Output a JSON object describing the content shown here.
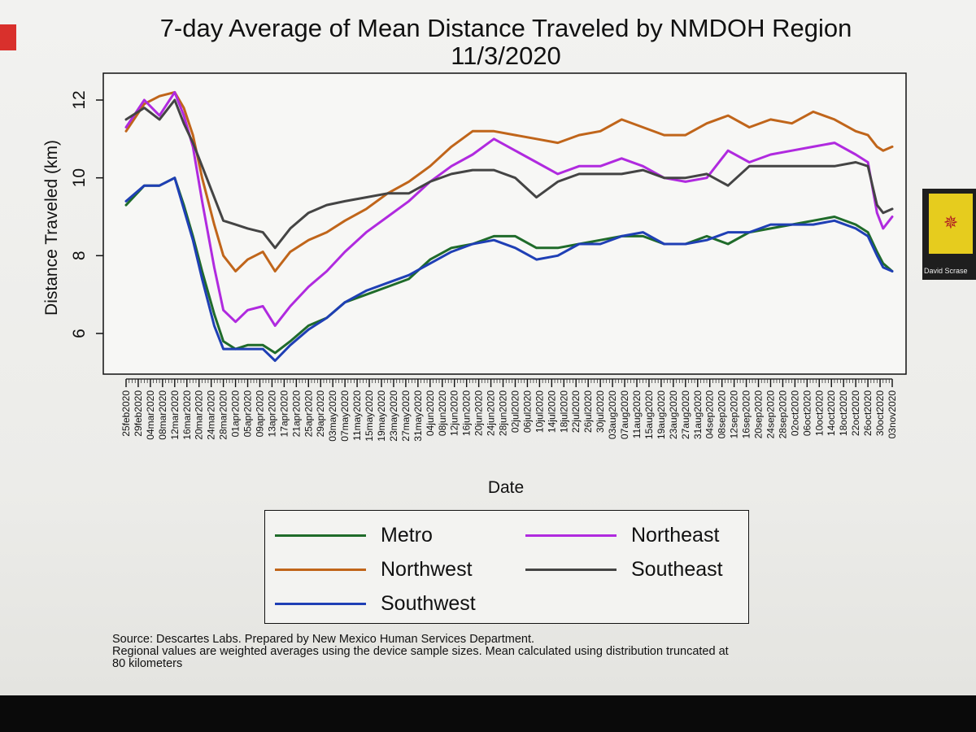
{
  "chart_data": {
    "type": "line",
    "title": "7-day Average of Mean Distance Traveled by NMDOH Region",
    "subtitle": "11/3/2020",
    "xlabel": "Date",
    "ylabel": "Distance Traveled (km)",
    "ylim": [
      5.2,
      12.7
    ],
    "yticks": [
      6,
      8,
      10,
      12
    ],
    "grid": false,
    "legend_position": "below",
    "x_tick_labels": [
      "25feb2020",
      "29feb2020",
      "04mar2020",
      "08mar2020",
      "12mar2020",
      "16mar2020",
      "20mar2020",
      "24mar2020",
      "28mar2020",
      "01apr2020",
      "05apr2020",
      "09apr2020",
      "13apr2020",
      "17apr2020",
      "21apr2020",
      "25apr2020",
      "29apr2020",
      "03may2020",
      "07may2020",
      "11may2020",
      "15may2020",
      "19may2020",
      "23may2020",
      "27may2020",
      "31may2020",
      "04jun2020",
      "08jun2020",
      "12jun2020",
      "16jun2020",
      "20jun2020",
      "24jun2020",
      "28jun2020",
      "02jul2020",
      "06jul2020",
      "10jul2020",
      "14jul2020",
      "18jul2020",
      "22jul2020",
      "26jul2020",
      "30jul2020",
      "03aug2020",
      "07aug2020",
      "11aug2020",
      "15aug2020",
      "19aug2020",
      "23aug2020",
      "27aug2020",
      "31aug2020",
      "04sep2020",
      "08sep2020",
      "12sep2020",
      "16sep2020",
      "20sep2020",
      "24sep2020",
      "28sep2020",
      "02oct2020",
      "06oct2020",
      "10oct2020",
      "14oct2020",
      "18oct2020",
      "22oct2020",
      "26oct2020",
      "30oct2020",
      "03nov2020"
    ],
    "x": [
      "25feb2020",
      "02mar2020",
      "07mar2020",
      "12mar2020",
      "15mar2020",
      "18mar2020",
      "21mar2020",
      "25mar2020",
      "28mar2020",
      "01apr2020",
      "05apr2020",
      "10apr2020",
      "14apr2020",
      "19apr2020",
      "25apr2020",
      "01may2020",
      "07may2020",
      "14may2020",
      "21may2020",
      "28may2020",
      "04jun2020",
      "11jun2020",
      "18jun2020",
      "25jun2020",
      "02jul2020",
      "09jul2020",
      "16jul2020",
      "23jul2020",
      "30jul2020",
      "06aug2020",
      "13aug2020",
      "20aug2020",
      "27aug2020",
      "03sep2020",
      "10sep2020",
      "17sep2020",
      "24sep2020",
      "01oct2020",
      "08oct2020",
      "15oct2020",
      "22oct2020",
      "26oct2020",
      "29oct2020",
      "31oct2020",
      "03nov2020"
    ],
    "series": [
      {
        "name": "Metro",
        "color": "#1f6b2a",
        "values": [
          9.3,
          9.8,
          9.8,
          10.0,
          9.3,
          8.5,
          7.6,
          6.5,
          5.8,
          5.6,
          5.7,
          5.7,
          5.5,
          5.8,
          6.2,
          6.4,
          6.8,
          7.0,
          7.2,
          7.4,
          7.9,
          8.2,
          8.3,
          8.5,
          8.5,
          8.2,
          8.2,
          8.3,
          8.4,
          8.5,
          8.5,
          8.3,
          8.3,
          8.5,
          8.3,
          8.6,
          8.7,
          8.8,
          8.9,
          9.0,
          8.8,
          8.6,
          8.1,
          7.8,
          7.6
        ]
      },
      {
        "name": "Northwest",
        "color": "#c0651a",
        "values": [
          11.2,
          11.9,
          12.1,
          12.2,
          11.8,
          11.1,
          10.0,
          8.8,
          8.0,
          7.6,
          7.9,
          8.1,
          7.6,
          8.1,
          8.4,
          8.6,
          8.9,
          9.2,
          9.6,
          9.9,
          10.3,
          10.8,
          11.2,
          11.2,
          11.1,
          11.0,
          10.9,
          11.1,
          11.2,
          11.5,
          11.3,
          11.1,
          11.1,
          11.4,
          11.6,
          11.3,
          11.5,
          11.4,
          11.7,
          11.5,
          11.2,
          11.1,
          10.8,
          10.7,
          10.8
        ]
      },
      {
        "name": "Southwest",
        "color": "#1f3fb5",
        "values": [
          9.4,
          9.8,
          9.8,
          10.0,
          9.2,
          8.4,
          7.4,
          6.2,
          5.6,
          5.6,
          5.6,
          5.6,
          5.3,
          5.7,
          6.1,
          6.4,
          6.8,
          7.1,
          7.3,
          7.5,
          7.8,
          8.1,
          8.3,
          8.4,
          8.2,
          7.9,
          8.0,
          8.3,
          8.3,
          8.5,
          8.6,
          8.3,
          8.3,
          8.4,
          8.6,
          8.6,
          8.8,
          8.8,
          8.8,
          8.9,
          8.7,
          8.5,
          8.0,
          7.7,
          7.6
        ]
      },
      {
        "name": "Northeast",
        "color": "#b02adf",
        "values": [
          11.3,
          12.0,
          11.6,
          12.2,
          11.6,
          10.8,
          9.4,
          7.7,
          6.6,
          6.3,
          6.6,
          6.7,
          6.2,
          6.7,
          7.2,
          7.6,
          8.1,
          8.6,
          9.0,
          9.4,
          9.9,
          10.3,
          10.6,
          11.0,
          10.7,
          10.4,
          10.1,
          10.3,
          10.3,
          10.5,
          10.3,
          10.0,
          9.9,
          10.0,
          10.7,
          10.4,
          10.6,
          10.7,
          10.8,
          10.9,
          10.6,
          10.4,
          9.1,
          8.7,
          9.0
        ]
      },
      {
        "name": "Southeast",
        "color": "#444444",
        "values": [
          11.5,
          11.8,
          11.5,
          12.0,
          11.4,
          10.9,
          10.3,
          9.5,
          8.9,
          8.8,
          8.7,
          8.6,
          8.2,
          8.7,
          9.1,
          9.3,
          9.4,
          9.5,
          9.6,
          9.6,
          9.9,
          10.1,
          10.2,
          10.2,
          10.0,
          9.5,
          9.9,
          10.1,
          10.1,
          10.1,
          10.2,
          10.0,
          10.0,
          10.1,
          9.8,
          10.3,
          10.3,
          10.3,
          10.3,
          10.3,
          10.4,
          10.3,
          9.3,
          9.1,
          9.2
        ]
      }
    ]
  },
  "source_lines": [
    "Source: Descartes Labs. Prepared by New Mexico Human Services Department.",
    "Regional values are weighted averages using the device sample sizes. Mean calculated using distribution truncated at",
    "80 kilometers"
  ],
  "thumbnail": {
    "caption": "David Scrase",
    "icon": "zia-sun-flag-icon"
  }
}
